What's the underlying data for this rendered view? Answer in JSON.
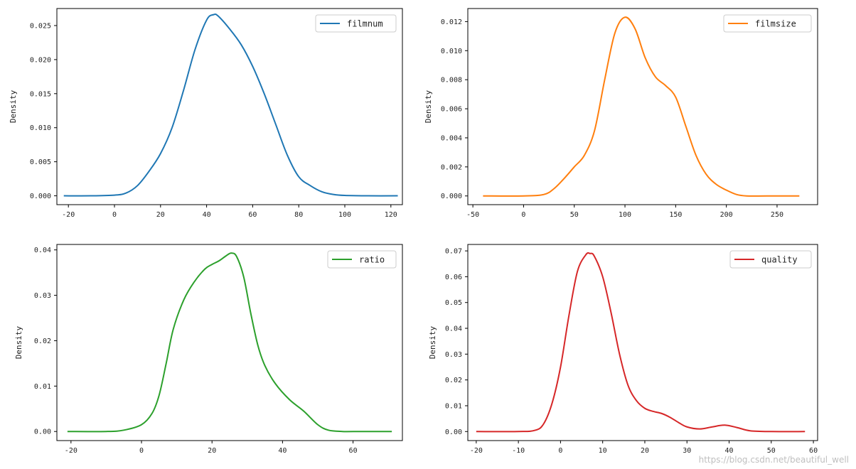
{
  "chart_data": [
    {
      "type": "line",
      "title": "",
      "xlabel": "",
      "ylabel": "Density",
      "xlim": [
        -25,
        125
      ],
      "ylim": [
        -0.0013,
        0.0275
      ],
      "xticks": [
        -20,
        0,
        20,
        40,
        60,
        80,
        100,
        120
      ],
      "yticks": [
        0.0,
        0.005,
        0.01,
        0.015,
        0.02,
        0.025
      ],
      "ytick_decimals": 3,
      "legend": "top-right",
      "series": [
        {
          "name": "filmnum",
          "color": "#1f77b4",
          "x": [
            -22,
            -10,
            0,
            5,
            10,
            15,
            20,
            25,
            30,
            35,
            40,
            43,
            45,
            50,
            55,
            60,
            65,
            70,
            75,
            80,
            85,
            90,
            95,
            100,
            110,
            123
          ],
          "y": [
            0,
            0,
            0.0001,
            0.0004,
            0.0015,
            0.0036,
            0.0062,
            0.01,
            0.0155,
            0.0215,
            0.0258,
            0.0266,
            0.0264,
            0.0245,
            0.0222,
            0.019,
            0.015,
            0.0105,
            0.006,
            0.0028,
            0.0015,
            0.0006,
            0.0002,
            5e-05,
            0,
            0
          ]
        }
      ]
    },
    {
      "type": "line",
      "title": "",
      "xlabel": "",
      "ylabel": "Density",
      "xlim": [
        -55,
        290
      ],
      "ylim": [
        -0.0006,
        0.0129
      ],
      "xticks": [
        -50,
        0,
        50,
        100,
        150,
        200,
        250
      ],
      "yticks": [
        0.0,
        0.002,
        0.004,
        0.006,
        0.008,
        0.01,
        0.012
      ],
      "ytick_decimals": 3,
      "legend": "top-right",
      "series": [
        {
          "name": "filmsize",
          "color": "#ff7f0e",
          "x": [
            -40,
            0,
            20,
            30,
            40,
            50,
            60,
            70,
            80,
            90,
            100,
            110,
            120,
            130,
            140,
            150,
            160,
            170,
            180,
            190,
            200,
            210,
            220,
            240,
            272
          ],
          "y": [
            0,
            0,
            0.0001,
            0.0005,
            0.0012,
            0.002,
            0.0028,
            0.0045,
            0.008,
            0.0112,
            0.0123,
            0.0115,
            0.0095,
            0.0082,
            0.0076,
            0.0068,
            0.0048,
            0.0028,
            0.0015,
            0.0008,
            0.0004,
            0.0001,
            0,
            0,
            0
          ]
        }
      ]
    },
    {
      "type": "line",
      "title": "",
      "xlabel": "",
      "ylabel": "Density",
      "xlim": [
        -24,
        74
      ],
      "ylim": [
        -0.002,
        0.0412
      ],
      "xticks": [
        -20,
        0,
        20,
        40,
        60
      ],
      "yticks": [
        0.0,
        0.01,
        0.02,
        0.03,
        0.04
      ],
      "ytick_decimals": 2,
      "legend": "top-right",
      "series": [
        {
          "name": "ratio",
          "color": "#2ca02c",
          "x": [
            -21,
            -10,
            -5,
            0,
            3,
            5,
            7,
            9,
            12,
            15,
            18,
            20,
            22,
            24,
            25.5,
            27,
            29,
            31,
            33,
            35,
            38,
            42,
            46,
            50,
            53,
            57,
            60,
            71
          ],
          "y": [
            0,
            0,
            0.0003,
            0.0015,
            0.004,
            0.008,
            0.015,
            0.0225,
            0.029,
            0.033,
            0.0358,
            0.0368,
            0.0376,
            0.0387,
            0.0393,
            0.0385,
            0.034,
            0.026,
            0.019,
            0.0145,
            0.0105,
            0.007,
            0.0045,
            0.0015,
            0.0003,
            0,
            0,
            0
          ]
        }
      ]
    },
    {
      "type": "line",
      "title": "",
      "xlabel": "",
      "ylabel": "Density",
      "xlim": [
        -22,
        61
      ],
      "ylim": [
        -0.0035,
        0.0725
      ],
      "xticks": [
        -20,
        -10,
        0,
        10,
        20,
        30,
        40,
        50,
        60
      ],
      "yticks": [
        0.0,
        0.01,
        0.02,
        0.03,
        0.04,
        0.05,
        0.06,
        0.07
      ],
      "ytick_decimals": 2,
      "legend": "top-right",
      "series": [
        {
          "name": "quality",
          "color": "#d62728",
          "x": [
            -20,
            -10,
            -6,
            -4,
            -2,
            0,
            2,
            4,
            6,
            7,
            8,
            10,
            12,
            14,
            16,
            18,
            20,
            22,
            24,
            26,
            28,
            30,
            33,
            36,
            39,
            42,
            45,
            50,
            58
          ],
          "y": [
            0,
            0,
            0.0005,
            0.003,
            0.011,
            0.025,
            0.045,
            0.062,
            0.0685,
            0.069,
            0.068,
            0.06,
            0.046,
            0.03,
            0.018,
            0.012,
            0.009,
            0.0078,
            0.007,
            0.0055,
            0.0035,
            0.0018,
            0.001,
            0.0018,
            0.0025,
            0.0015,
            0.0003,
            0,
            0
          ]
        }
      ]
    }
  ],
  "watermark": "https://blog.csdn.net/beautiful_well"
}
